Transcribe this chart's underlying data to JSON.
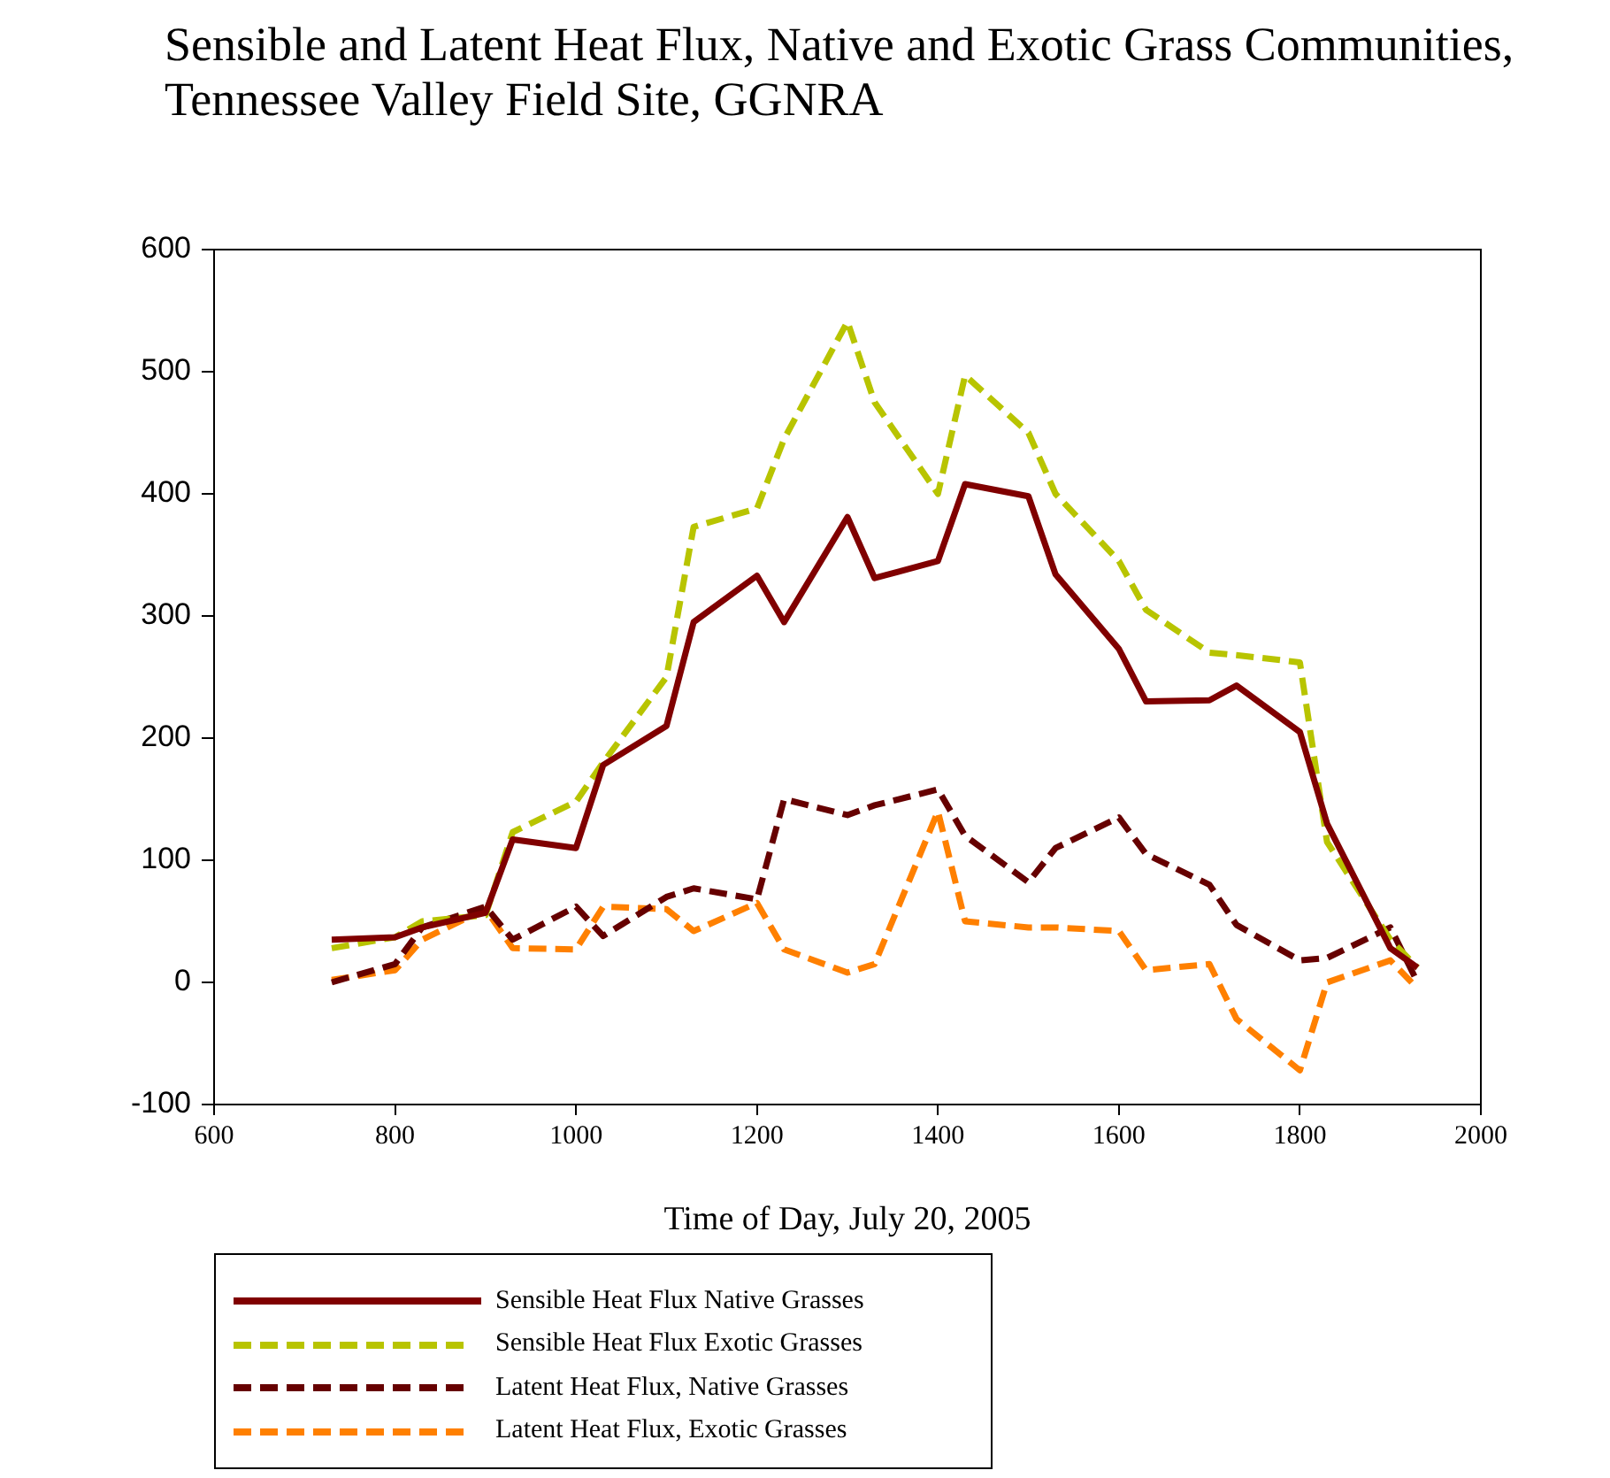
{
  "chart_data": {
    "type": "line",
    "title": "Sensible and Latent Heat Flux, Native and Exotic Grass Communities, Tennessee Valley Field Site, GGNRA",
    "xlabel": "Time of Day, July 20, 2005",
    "x": [
      730,
      800,
      830,
      900,
      930,
      1000,
      1030,
      1100,
      1130,
      1200,
      1230,
      1300,
      1330,
      1400,
      1430,
      1500,
      1530,
      1600,
      1630,
      1700,
      1730,
      1800,
      1830,
      1900,
      1930
    ],
    "series": [
      {
        "name": "Sensible Heat Flux Native Grasses",
        "color": "#800000",
        "line_style": "solid",
        "values": [
          35,
          37,
          45,
          57,
          117,
          110,
          178,
          210,
          295,
          333,
          295,
          381,
          331,
          345,
          408,
          398,
          334,
          273,
          230,
          231,
          243,
          205,
          130,
          28,
          12
        ]
      },
      {
        "name": "Sensible Heat Flux Exotic Grasses",
        "color": "#b8c400",
        "line_style": "dashed",
        "values": [
          28,
          37,
          50,
          55,
          123,
          148,
          180,
          250,
          373,
          388,
          445,
          541,
          475,
          400,
          497,
          450,
          400,
          345,
          305,
          270,
          268,
          262,
          115,
          35,
          12
        ]
      },
      {
        "name": "Latent Heat Flux, Native Grasses",
        "color": "#660000",
        "line_style": "dashed",
        "values": [
          0,
          15,
          45,
          62,
          35,
          62,
          38,
          70,
          77,
          68,
          150,
          137,
          145,
          158,
          120,
          82,
          110,
          135,
          105,
          80,
          47,
          18,
          20,
          45,
          0
        ]
      },
      {
        "name": "Latent Heat Flux, Exotic Grasses",
        "color": "#ff8000",
        "line_style": "dashed",
        "values": [
          2,
          10,
          35,
          60,
          28,
          27,
          62,
          60,
          42,
          65,
          27,
          8,
          15,
          140,
          50,
          45,
          45,
          42,
          10,
          15,
          -30,
          -72,
          0,
          18,
          -5
        ]
      }
    ],
    "xlim": [
      600,
      2000
    ],
    "xticks": [
      600,
      800,
      1000,
      1200,
      1400,
      1600,
      1800,
      2000
    ],
    "ylim": [
      -100,
      600
    ],
    "yticks": [
      -100,
      0,
      100,
      200,
      300,
      400,
      500,
      600
    ],
    "grid": false,
    "legend": "bottom",
    "marker": "none"
  }
}
